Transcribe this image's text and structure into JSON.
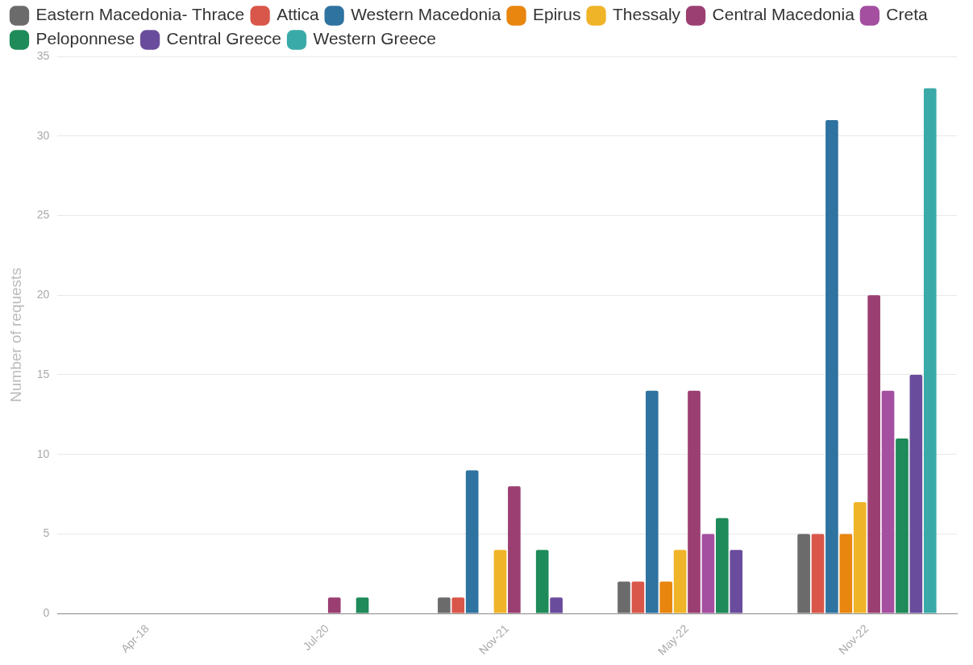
{
  "chart_data": {
    "type": "bar",
    "ylabel": "Number of requests",
    "categories": [
      "Apr-18",
      "Jul-20",
      "Nov-21",
      "May-22",
      "Nov-22"
    ],
    "series": [
      {
        "name": "Eastern Macedonia- Thrace",
        "color": "#6b6b6b",
        "values": [
          null,
          null,
          1,
          2,
          5
        ]
      },
      {
        "name": "Attica",
        "color": "#d9574a",
        "values": [
          null,
          null,
          1,
          2,
          5
        ]
      },
      {
        "name": "Western Macedonia",
        "color": "#2f73a0",
        "values": [
          null,
          null,
          9,
          14,
          31
        ]
      },
      {
        "name": "Epirus",
        "color": "#e8860f",
        "values": [
          null,
          null,
          null,
          2,
          5
        ]
      },
      {
        "name": "Thessaly",
        "color": "#f0b429",
        "values": [
          null,
          null,
          4,
          4,
          7
        ]
      },
      {
        "name": "Central Macedonia",
        "color": "#9b3f72",
        "values": [
          null,
          1,
          8,
          14,
          20
        ]
      },
      {
        "name": "Creta",
        "color": "#a44fa0",
        "values": [
          null,
          null,
          null,
          5,
          14
        ]
      },
      {
        "name": "Peloponnese",
        "color": "#1f8a5a",
        "values": [
          null,
          1,
          4,
          6,
          11
        ]
      },
      {
        "name": "Central Greece",
        "color": "#6a4c9c",
        "values": [
          null,
          null,
          1,
          4,
          15
        ]
      },
      {
        "name": "Western Greece",
        "color": "#3aaaa8",
        "values": [
          null,
          null,
          null,
          null,
          33
        ]
      }
    ],
    "ylim": [
      0,
      35
    ],
    "yticks": [
      0,
      5,
      10,
      15,
      20,
      25,
      30,
      35
    ],
    "grid": "y",
    "legend": "top left"
  }
}
